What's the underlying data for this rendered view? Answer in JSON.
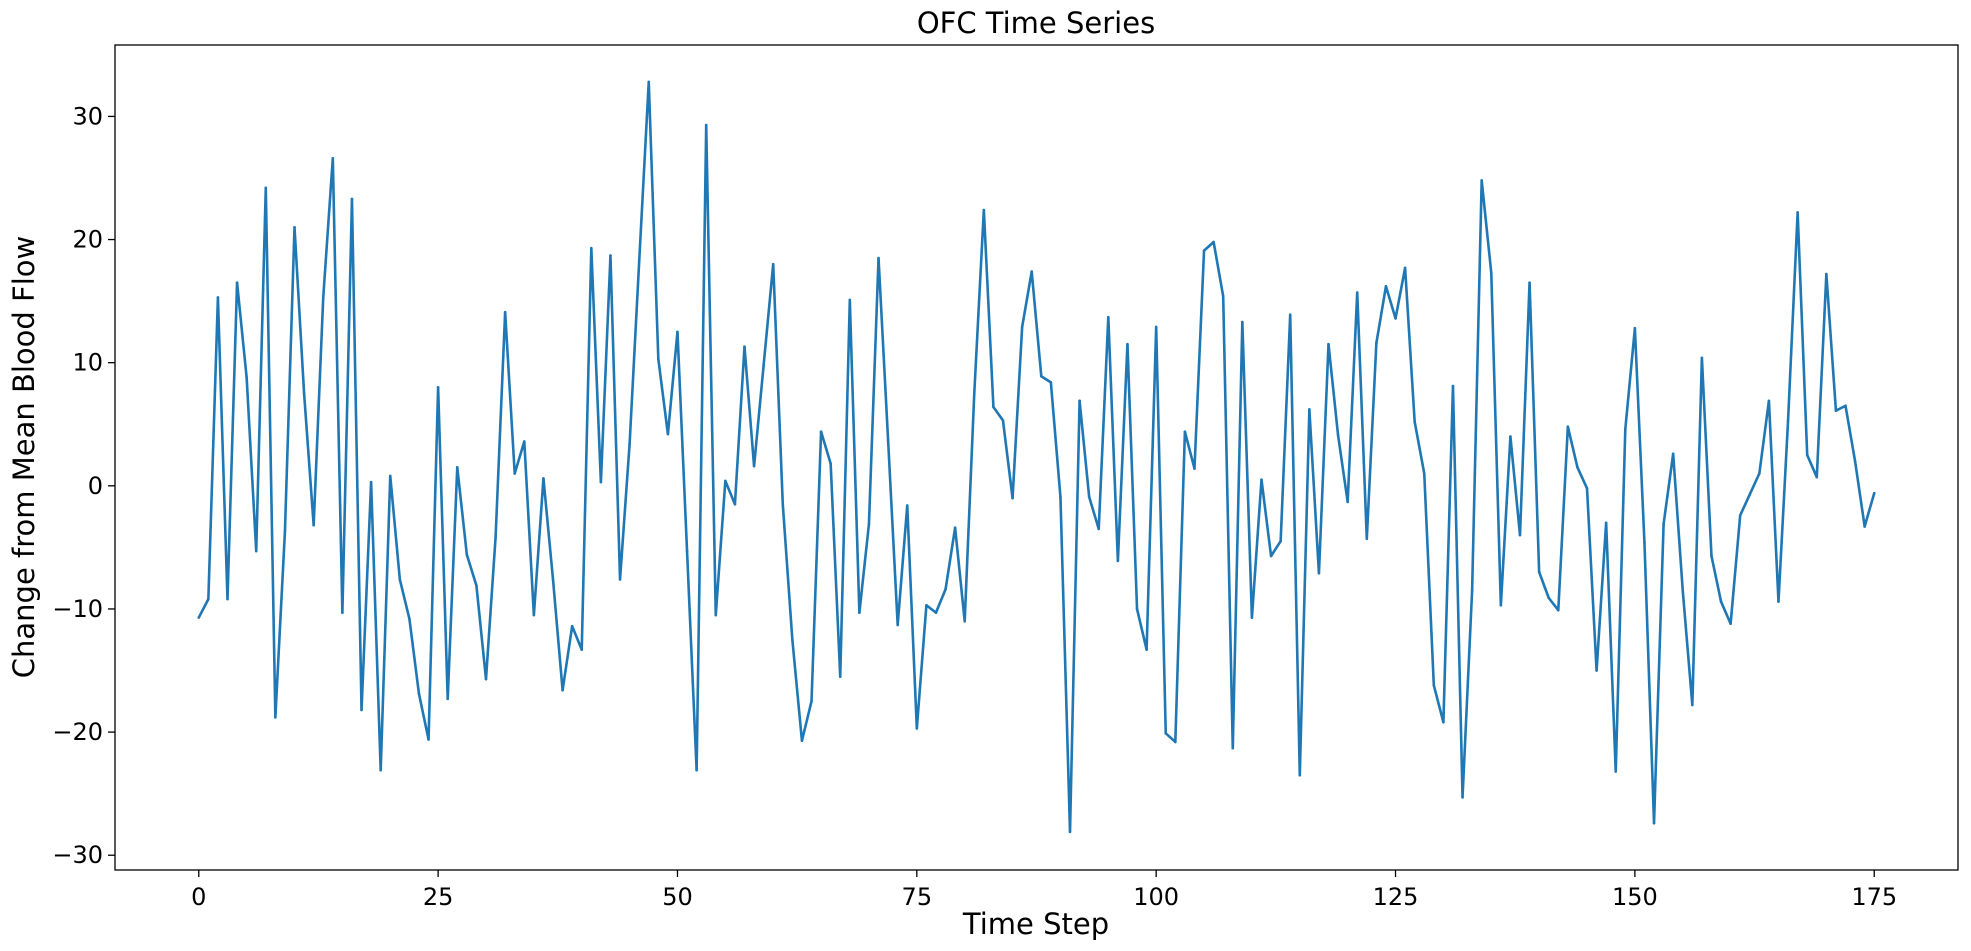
{
  "chart_data": {
    "type": "line",
    "title": "OFC Time Series",
    "xlabel": "Time Step",
    "ylabel": "Change from Mean Blood Flow",
    "xlim": [
      -8.75,
      183.75
    ],
    "ylim": [
      -31.2,
      35.8
    ],
    "xticks": [
      0,
      25,
      50,
      75,
      100,
      125,
      150,
      175
    ],
    "yticks": [
      -30,
      -20,
      -10,
      0,
      10,
      20,
      30
    ],
    "grid": false,
    "legend": "none",
    "series": [
      {
        "color": "#1f77b4",
        "x": [
          0,
          1,
          2,
          3,
          4,
          5,
          6,
          7,
          8,
          9,
          10,
          11,
          12,
          13,
          14,
          15,
          16,
          17,
          18,
          19,
          20,
          21,
          22,
          23,
          24,
          25,
          26,
          27,
          28,
          29,
          30,
          31,
          32,
          33,
          34,
          35,
          36,
          37,
          38,
          39,
          40,
          41,
          42,
          43,
          44,
          45,
          46,
          47,
          48,
          49,
          50,
          51,
          52,
          53,
          54,
          55,
          56,
          57,
          58,
          59,
          60,
          61,
          62,
          63,
          64,
          65,
          66,
          67,
          68,
          69,
          70,
          71,
          72,
          73,
          74,
          75,
          76,
          77,
          78,
          79,
          80,
          81,
          82,
          83,
          84,
          85,
          86,
          87,
          88,
          89,
          90,
          91,
          92,
          93,
          94,
          95,
          96,
          97,
          98,
          99,
          100,
          101,
          102,
          103,
          104,
          105,
          106,
          107,
          108,
          109,
          110,
          111,
          112,
          113,
          114,
          115,
          116,
          117,
          118,
          119,
          120,
          121,
          122,
          123,
          124,
          125,
          126,
          127,
          128,
          129,
          130,
          131,
          132,
          133,
          134,
          135,
          136,
          137,
          138,
          139,
          140,
          141,
          142,
          143,
          144,
          145,
          146,
          147,
          148,
          149,
          150,
          151,
          152,
          153,
          154,
          155,
          156,
          157,
          158,
          159,
          160,
          161,
          162,
          163,
          164,
          165,
          166,
          167,
          168,
          169,
          170,
          171,
          172,
          173,
          174,
          175
        ],
        "values": [
          -10.7,
          -9.2,
          15.3,
          -9.2,
          16.5,
          8.8,
          -5.3,
          24.2,
          -18.8,
          -3.7,
          21.0,
          7.5,
          -3.2,
          15.3,
          26.6,
          -10.3,
          23.3,
          -18.2,
          0.3,
          -23.1,
          0.8,
          -7.6,
          -10.8,
          -16.9,
          -20.6,
          8.0,
          -17.3,
          1.5,
          -5.6,
          -8.1,
          -15.7,
          -4.2,
          14.1,
          1.0,
          3.6,
          -10.5,
          0.6,
          -7.6,
          -16.6,
          -11.4,
          -13.3,
          19.3,
          0.3,
          18.7,
          -7.6,
          3.4,
          18.2,
          32.8,
          10.3,
          4.2,
          12.5,
          -5.3,
          -23.1,
          29.3,
          -10.5,
          0.4,
          -1.5,
          11.3,
          1.6,
          9.8,
          18.0,
          -1.5,
          -12.5,
          -20.7,
          -17.5,
          4.4,
          1.8,
          -15.5,
          15.1,
          -10.3,
          -3.1,
          18.5,
          3.7,
          -11.3,
          -1.6,
          -19.7,
          -9.7,
          -10.3,
          -8.4,
          -3.4,
          -11.0,
          7.5,
          22.4,
          6.4,
          5.3,
          -1.0,
          12.9,
          17.4,
          8.9,
          8.4,
          -0.9,
          -28.1,
          6.9,
          -0.9,
          -3.5,
          13.7,
          -6.1,
          11.5,
          -10.0,
          -13.3,
          12.9,
          -20.1,
          -20.8,
          4.4,
          1.4,
          19.1,
          19.8,
          15.4,
          -21.3,
          13.3,
          -10.7,
          0.5,
          -5.7,
          -4.5,
          13.9,
          -23.5,
          6.2,
          -7.1,
          11.5,
          4.1,
          -1.3,
          15.7,
          -4.3,
          11.6,
          16.2,
          13.6,
          17.7,
          5.2,
          1.0,
          -16.2,
          -19.2,
          8.1,
          -25.3,
          -8.5,
          24.8,
          17.3,
          -9.7,
          4.0,
          -4.0,
          16.5,
          -7.0,
          -9.1,
          -10.1,
          4.8,
          1.5,
          -0.2,
          -15.0,
          -3.0,
          -23.2,
          4.6,
          12.8,
          -4.6,
          -27.4,
          -3.1,
          2.6,
          -8.5,
          -17.8,
          10.4,
          -5.7,
          -9.4,
          -11.2,
          -2.4,
          -0.7,
          1.0,
          6.9,
          -9.4,
          5.3,
          22.2,
          2.5,
          0.7,
          17.2,
          6.1,
          6.5,
          2.0,
          -3.3,
          -0.6
        ]
      }
    ]
  }
}
